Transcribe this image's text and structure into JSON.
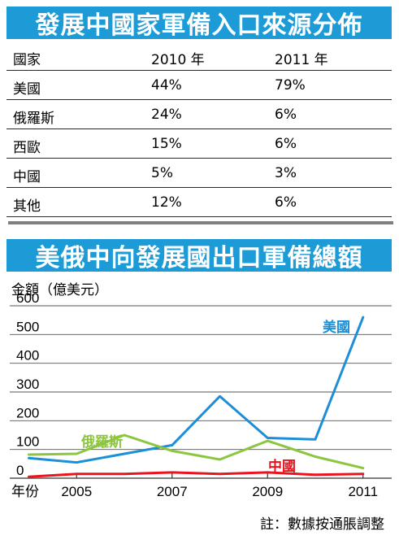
{
  "table_title": "發展中國家軍備入口來源分佈",
  "table": {
    "headers": [
      "國家",
      "2010 年",
      "2011 年"
    ],
    "rows": [
      [
        "美國",
        "44%",
        "79%"
      ],
      [
        "俄羅斯",
        "24%",
        "6%"
      ],
      [
        "西歐",
        "15%",
        "6%"
      ],
      [
        "中國",
        "5%",
        "3%"
      ],
      [
        "其他",
        "12%",
        "6%"
      ]
    ]
  },
  "chart_title": "美俄中向發展國出口軍備總額",
  "note": "註：數據按通脹調整",
  "colors": {
    "banner": "#1d9bd7",
    "usa": "#1d8fd6",
    "russia": "#8cc63f",
    "china": "#e8141e"
  },
  "chart_data": {
    "type": "line",
    "ylabel": "金額（億美元）",
    "xlabel": "年份",
    "ylim": [
      0,
      600
    ],
    "yticks": [
      0,
      100,
      200,
      300,
      400,
      500,
      600
    ],
    "xlim": [
      2003.6,
      2011.6
    ],
    "xticks": [
      2005,
      2007,
      2009,
      2011
    ],
    "x": [
      2004,
      2005,
      2006,
      2007,
      2008,
      2009,
      2010,
      2011
    ],
    "grid": true,
    "series": [
      {
        "name": "美國",
        "color": "#1d8fd6",
        "values": [
          70,
          55,
          85,
          115,
          285,
          140,
          135,
          560
        ]
      },
      {
        "name": "俄羅斯",
        "color": "#8cc63f",
        "values": [
          82,
          85,
          150,
          95,
          65,
          130,
          75,
          35
        ]
      },
      {
        "name": "中國",
        "color": "#e8141e",
        "values": [
          5,
          15,
          15,
          20,
          15,
          20,
          12,
          15
        ]
      }
    ]
  }
}
